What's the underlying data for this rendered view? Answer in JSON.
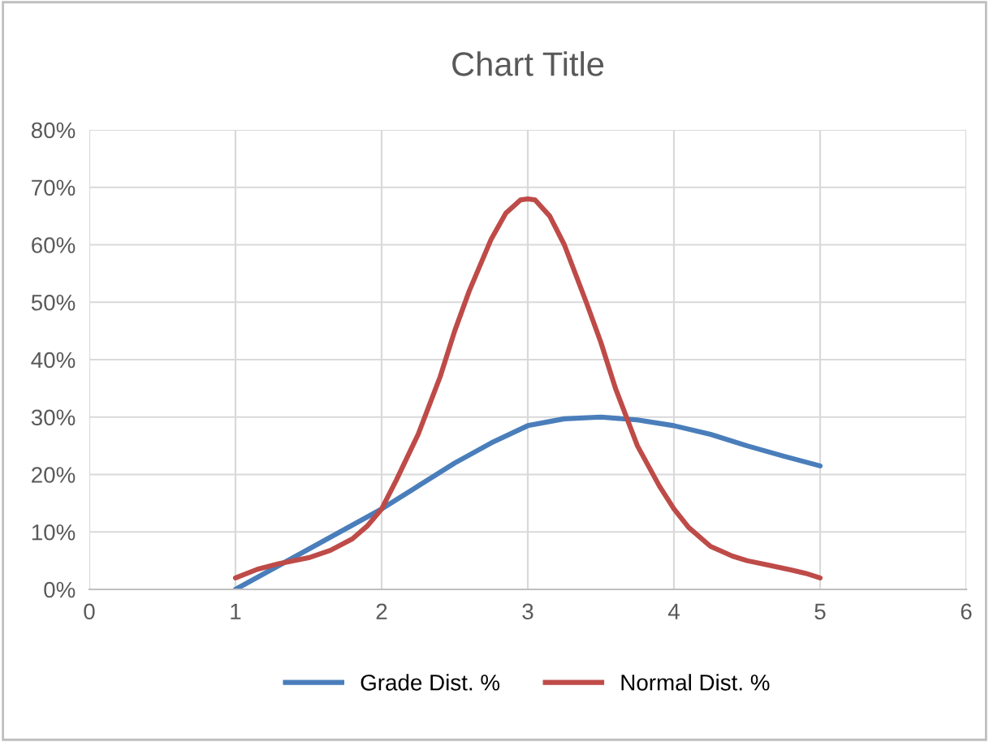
{
  "chart_data": {
    "type": "line",
    "title": "Chart Title",
    "series": [
      {
        "name": "Grade Dist. %",
        "color": "#4a7ebb",
        "x": [
          1,
          1.25,
          1.5,
          1.75,
          2,
          2.25,
          2.5,
          2.75,
          3,
          3.25,
          3.5,
          3.75,
          4,
          4.25,
          4.5,
          4.75,
          5
        ],
        "values": [
          0,
          3.5,
          7,
          10.5,
          14,
          18,
          22,
          25.5,
          28.5,
          29.7,
          30,
          29.5,
          28.5,
          27,
          25,
          23.2,
          21.5
        ]
      },
      {
        "name": "Normal Dist. %",
        "color": "#be4b48",
        "x": [
          1,
          1.15,
          1.3,
          1.5,
          1.65,
          1.8,
          1.9,
          2,
          2.1,
          2.25,
          2.4,
          2.5,
          2.6,
          2.75,
          2.85,
          2.95,
          3,
          3.05,
          3.15,
          3.25,
          3.4,
          3.5,
          3.6,
          3.75,
          3.9,
          4,
          4.1,
          4.25,
          4.4,
          4.5,
          4.65,
          4.8,
          4.9,
          5
        ],
        "values": [
          2,
          3.5,
          4.5,
          5.5,
          6.8,
          8.8,
          11,
          14,
          19,
          27,
          37,
          45,
          52,
          61,
          65.5,
          67.8,
          68,
          67.8,
          65,
          60,
          50,
          43,
          35,
          25,
          18,
          14,
          10.8,
          7.5,
          5.8,
          5,
          4.2,
          3.4,
          2.8,
          2
        ]
      }
    ],
    "xlim": [
      0,
      6
    ],
    "xticks": [
      0,
      1,
      2,
      3,
      4,
      5,
      6
    ],
    "ylim": [
      0,
      80
    ],
    "yticks": [
      {
        "value": 0,
        "label": "0%"
      },
      {
        "value": 10,
        "label": "10%"
      },
      {
        "value": 20,
        "label": "20%"
      },
      {
        "value": 30,
        "label": "30%"
      },
      {
        "value": 40,
        "label": "40%"
      },
      {
        "value": 50,
        "label": "50%"
      },
      {
        "value": 60,
        "label": "60%"
      },
      {
        "value": 70,
        "label": "70%"
      },
      {
        "value": 80,
        "label": "80%"
      }
    ],
    "grid": true,
    "legend": "bottom",
    "marker": "none",
    "line_style": "solid"
  }
}
